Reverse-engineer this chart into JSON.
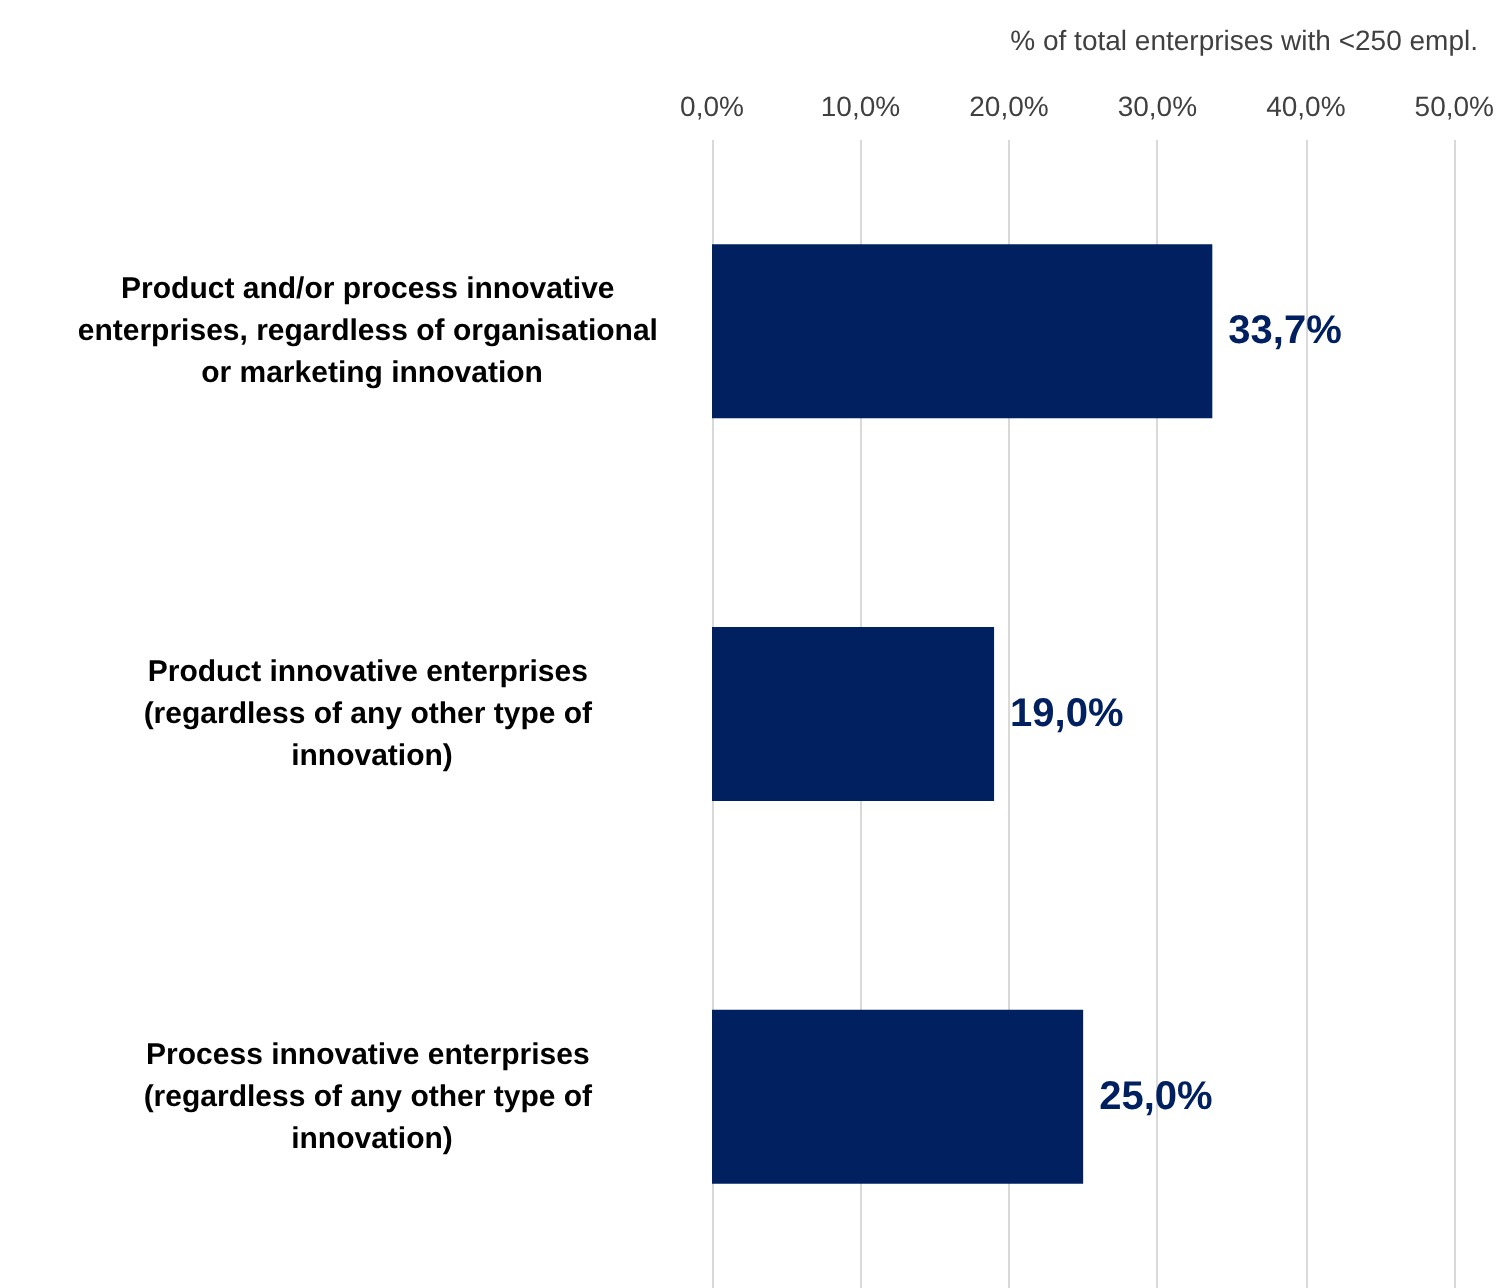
{
  "chart_data": {
    "type": "bar",
    "orientation": "horizontal",
    "xlabel": "% of total enterprises with <250 empl.",
    "categories": [
      "Product and/or process innovative enterprises, regardless of organisational or marketing innovation",
      "Product innovative enterprises (regardless of any other type of innovation)",
      "Process innovative enterprises (regardless of any other type of innovation)"
    ],
    "values": [
      33.7,
      19.0,
      25.0
    ],
    "value_labels": [
      "33,7%",
      "19,0%",
      "25,0%"
    ],
    "color": "#002060",
    "xlim": [
      0,
      50
    ],
    "xticks": [
      {
        "value": 0,
        "label": "0,0%"
      },
      {
        "value": 10,
        "label": "10,0%"
      },
      {
        "value": 20,
        "label": "20,0%"
      },
      {
        "value": 30,
        "label": "30,0%"
      },
      {
        "value": 40,
        "label": "40,0%"
      },
      {
        "value": 50,
        "label": "50,0%"
      }
    ],
    "grid": "x"
  }
}
